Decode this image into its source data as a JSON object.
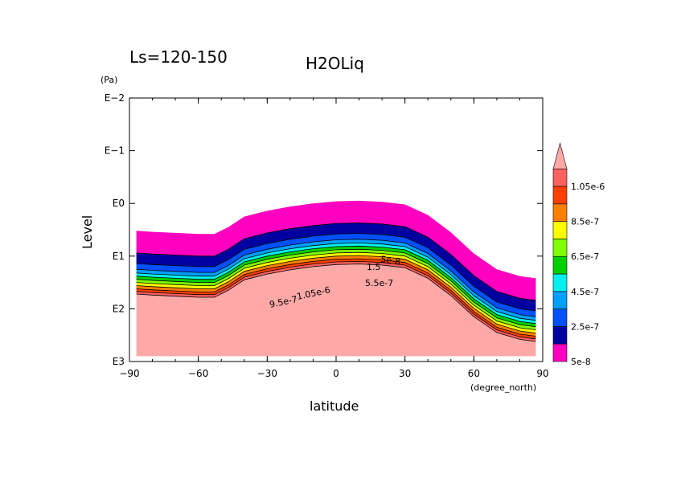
{
  "chart_data": {
    "type": "heatmap",
    "subtitle": "Ls=120-150",
    "title": "H2OLiq",
    "xlabel": "latitude",
    "xunits": "(degree_north)",
    "ylabel": "Level",
    "yunits": "(Pa)",
    "xlim": [
      -90,
      90
    ],
    "ylim_log10": [
      -2,
      3
    ],
    "y_axis": "pressure, log scale, increasing downward",
    "xticks": [
      {
        "value": -90,
        "label": "−90"
      },
      {
        "value": -60,
        "label": "−60"
      },
      {
        "value": -30,
        "label": "−30"
      },
      {
        "value": 0,
        "label": "0"
      },
      {
        "value": 30,
        "label": "30"
      },
      {
        "value": 60,
        "label": "60"
      },
      {
        "value": 90,
        "label": "90"
      }
    ],
    "yticks": [
      {
        "exp": -2,
        "label": "E−2"
      },
      {
        "exp": -1,
        "label": "E−1"
      },
      {
        "exp": 0,
        "label": "E0"
      },
      {
        "exp": 1,
        "label": "E1"
      },
      {
        "exp": 2,
        "label": "E2"
      },
      {
        "exp": 3,
        "label": "E3"
      }
    ],
    "levels": [
      5e-08,
      1.5e-07,
      2.5e-07,
      3.5e-07,
      4.5e-07,
      5.5e-07,
      6.5e-07,
      7.5e-07,
      8.5e-07,
      9.5e-07,
      1.05e-06
    ],
    "colorbar_labels": [
      {
        "index": 0,
        "label": "5e-8"
      },
      {
        "index": 2,
        "label": "2.5e-7"
      },
      {
        "index": 4,
        "label": "4.5e-7"
      },
      {
        "index": 6,
        "label": "6.5e-7"
      },
      {
        "index": 8,
        "label": "8.5e-7"
      },
      {
        "index": 10,
        "label": "1.05e-6"
      }
    ],
    "band_colors": [
      "#ff00c0",
      "#0000a0",
      "#0050ff",
      "#00a0ff",
      "#00f0f0",
      "#00d000",
      "#80ff00",
      "#ffff00",
      "#ff8000",
      "#ff4000",
      "#ff6060"
    ],
    "top_color": "#ffa8a8",
    "cloud_top_boundary": [
      [
        -87,
        0.52
      ],
      [
        -80,
        0.54
      ],
      [
        -70,
        0.56
      ],
      [
        -60,
        0.58
      ],
      [
        -53,
        0.58
      ],
      [
        -47,
        0.45
      ],
      [
        -40,
        0.25
      ],
      [
        -30,
        0.14
      ],
      [
        -20,
        0.06
      ],
      [
        -10,
        0.0
      ],
      [
        0,
        -0.04
      ],
      [
        10,
        -0.05
      ],
      [
        20,
        -0.03
      ],
      [
        30,
        0.02
      ],
      [
        40,
        0.22
      ],
      [
        50,
        0.55
      ],
      [
        60,
        0.95
      ],
      [
        70,
        1.25
      ],
      [
        80,
        1.38
      ],
      [
        87,
        1.42
      ]
    ],
    "band_thickness_log10": [
      0.42,
      0.2,
      0.11,
      0.07,
      0.06,
      0.06,
      0.06,
      0.06,
      0.06,
      0.05,
      0.05
    ],
    "contour_labels": [
      "5e-8",
      "1.5",
      "5.5e-7",
      "9.5e-7",
      "1.05e-6"
    ],
    "colorbar_extend": "max"
  }
}
